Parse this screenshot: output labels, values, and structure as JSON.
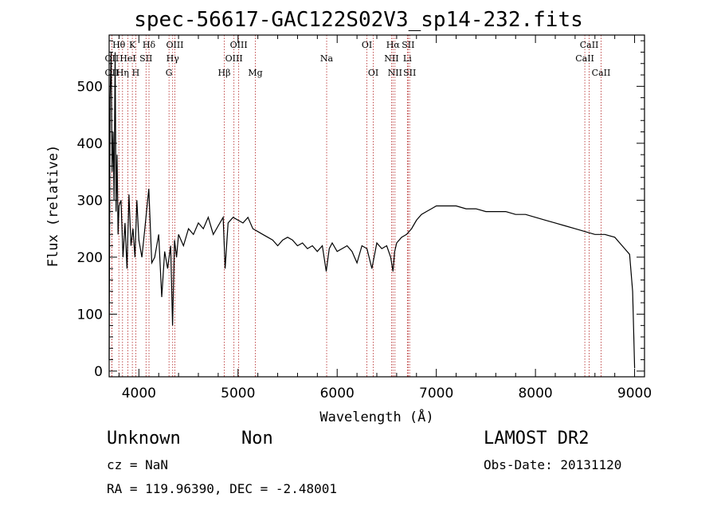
{
  "header": {
    "title": "spec-56617-GAC122S02V3_sp14-232.fits"
  },
  "info": {
    "object_class": "Unknown",
    "object_subclass": "Non",
    "survey": "LAMOST DR2",
    "cz": "cz = NaN",
    "obs_date": "Obs-Date: 20131120",
    "radec": "RA = 119.96390, DEC =  -2.48001"
  },
  "chart_data": {
    "type": "line",
    "xlabel": "Wavelength (Å)",
    "ylabel": "Flux (relative)",
    "xlim": [
      3700,
      9100
    ],
    "ylim": [
      -10,
      590
    ],
    "xticks": [
      4000,
      5000,
      6000,
      7000,
      8000,
      9000
    ],
    "yticks": [
      0,
      100,
      200,
      300,
      400,
      500
    ],
    "line_color": "#000000",
    "marker_color": "#b22222",
    "series": [
      {
        "x": [
          3700,
          3710,
          3720,
          3730,
          3740,
          3750,
          3760,
          3770,
          3780,
          3790,
          3800,
          3820,
          3840,
          3860,
          3880,
          3900,
          3920,
          3940,
          3960,
          3980,
          4000,
          4030,
          4060,
          4100,
          4130,
          4160,
          4200,
          4230,
          4260,
          4290,
          4320,
          4340,
          4360,
          4380,
          4400,
          4450,
          4500,
          4550,
          4600,
          4650,
          4700,
          4750,
          4800,
          4850,
          4870,
          4900,
          4950,
          5000,
          5050,
          5100,
          5150,
          5200,
          5250,
          5300,
          5350,
          5400,
          5450,
          5500,
          5550,
          5600,
          5650,
          5700,
          5750,
          5800,
          5850,
          5890,
          5920,
          5950,
          6000,
          6050,
          6100,
          6150,
          6200,
          6250,
          6300,
          6350,
          6400,
          6450,
          6500,
          6540,
          6563,
          6580,
          6600,
          6650,
          6700,
          6750,
          6800,
          6850,
          6900,
          6950,
          7000,
          7100,
          7200,
          7300,
          7400,
          7500,
          7600,
          7700,
          7800,
          7900,
          8000,
          8100,
          8200,
          8300,
          8400,
          8500,
          8600,
          8700,
          8800,
          8850,
          8900,
          8950,
          8980,
          9000
        ],
        "y": [
          20,
          480,
          560,
          350,
          420,
          300,
          560,
          280,
          380,
          240,
          290,
          300,
          200,
          260,
          180,
          310,
          220,
          250,
          200,
          300,
          230,
          200,
          250,
          320,
          190,
          200,
          240,
          130,
          210,
          180,
          220,
          80,
          230,
          200,
          240,
          220,
          250,
          240,
          260,
          250,
          270,
          240,
          255,
          270,
          180,
          260,
          270,
          265,
          260,
          270,
          250,
          245,
          240,
          235,
          230,
          220,
          230,
          235,
          230,
          220,
          225,
          215,
          220,
          210,
          220,
          175,
          215,
          225,
          210,
          215,
          220,
          210,
          190,
          220,
          215,
          180,
          225,
          215,
          220,
          200,
          175,
          210,
          225,
          235,
          240,
          250,
          265,
          275,
          280,
          285,
          290,
          290,
          290,
          285,
          285,
          280,
          280,
          280,
          275,
          275,
          270,
          265,
          260,
          255,
          250,
          245,
          240,
          240,
          235,
          225,
          215,
          205,
          140,
          5
        ]
      }
    ],
    "spectral_lines": [
      {
        "label": "OII",
        "wavelength": 3727,
        "row": 3
      },
      {
        "label": "OII",
        "wavelength": 3727,
        "row": 2
      },
      {
        "label": "Hθ",
        "wavelength": 3798,
        "row": 1
      },
      {
        "label": "Hη",
        "wavelength": 3835,
        "row": 3
      },
      {
        "label": "HeI",
        "wavelength": 3889,
        "row": 2
      },
      {
        "label": "K",
        "wavelength": 3934,
        "row": 1
      },
      {
        "label": "H",
        "wavelength": 3969,
        "row": 3
      },
      {
        "label": "SII",
        "wavelength": 4072,
        "row": 2
      },
      {
        "label": "Hδ",
        "wavelength": 4102,
        "row": 1
      },
      {
        "label": "G",
        "wavelength": 4304,
        "row": 3
      },
      {
        "label": "Hγ",
        "wavelength": 4341,
        "row": 2
      },
      {
        "label": "OIII",
        "wavelength": 4363,
        "row": 1
      },
      {
        "label": "Hβ",
        "wavelength": 4861,
        "row": 3
      },
      {
        "label": "OIII",
        "wavelength": 4959,
        "row": 2
      },
      {
        "label": "OIII",
        "wavelength": 5007,
        "row": 1
      },
      {
        "label": "Mg",
        "wavelength": 5175,
        "row": 3
      },
      {
        "label": "Na",
        "wavelength": 5894,
        "row": 2
      },
      {
        "label": "OI",
        "wavelength": 6300,
        "row": 1
      },
      {
        "label": "OI",
        "wavelength": 6364,
        "row": 3
      },
      {
        "label": "NII",
        "wavelength": 6548,
        "row": 2
      },
      {
        "label": "Hα",
        "wavelength": 6563,
        "row": 1
      },
      {
        "label": "NII",
        "wavelength": 6583,
        "row": 3
      },
      {
        "label": "Li",
        "wavelength": 6708,
        "row": 2
      },
      {
        "label": "SII",
        "wavelength": 6716,
        "row": 1
      },
      {
        "label": "SII",
        "wavelength": 6731,
        "row": 3
      },
      {
        "label": "CaII",
        "wavelength": 8498,
        "row": 2
      },
      {
        "label": "CaII",
        "wavelength": 8542,
        "row": 1
      },
      {
        "label": "CaII",
        "wavelength": 8662,
        "row": 3
      }
    ]
  }
}
